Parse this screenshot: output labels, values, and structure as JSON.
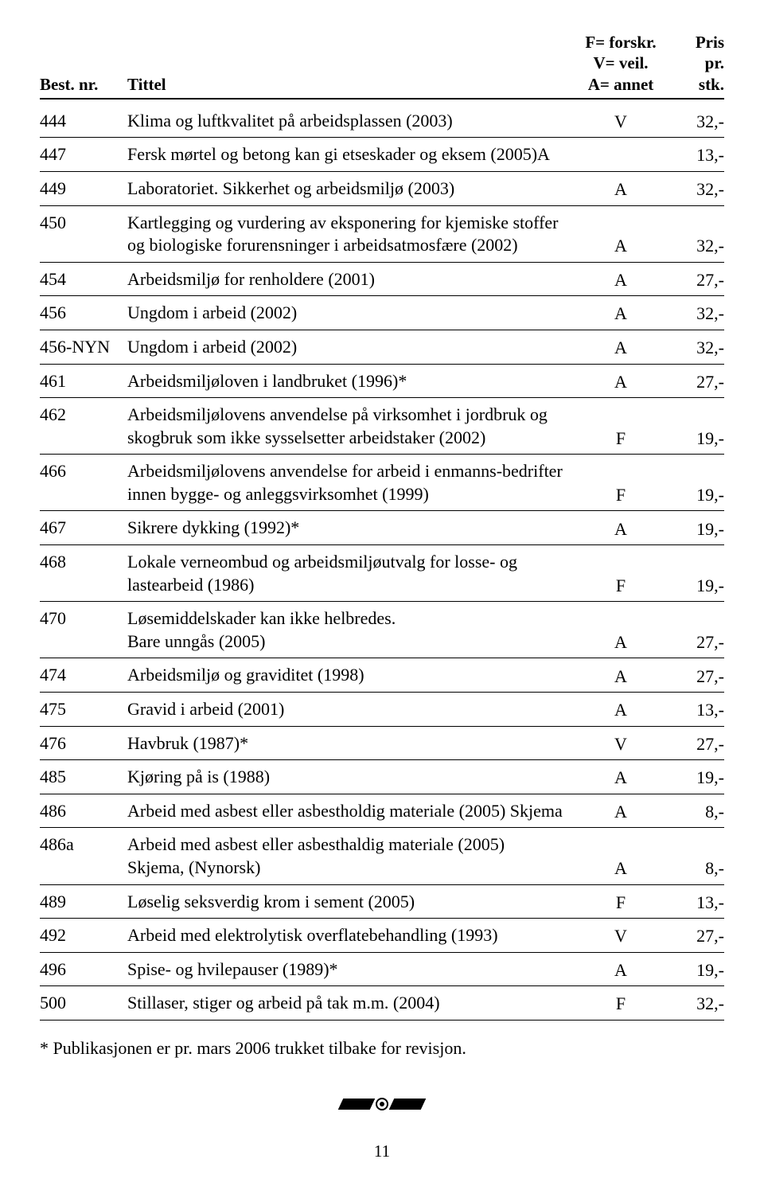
{
  "header": {
    "col_nr": "Best. nr.",
    "col_title": "Tittel",
    "col_type": "F= forskr.\nV= veil.\nA= annet",
    "col_price": "Pris\npr.\nstk."
  },
  "rows": [
    {
      "nr": "444",
      "title": "Klima og luftkvalitet på arbeidsplassen (2003)",
      "type": "V",
      "price": "32,-"
    },
    {
      "nr": "447",
      "title": "Fersk mørtel og betong kan gi etseskader og eksem (2005)A",
      "type": "",
      "price": "13,-"
    },
    {
      "nr": "449",
      "title": "Laboratoriet. Sikkerhet og arbeidsmiljø (2003)",
      "type": "A",
      "price": "32,-"
    },
    {
      "nr": "450",
      "title": "Kartlegging og vurdering av eksponering for kjemiske stoffer og biologiske forurensninger i arbeidsatmosfære (2002)",
      "type": "A",
      "price": "32,-"
    },
    {
      "nr": "454",
      "title": "Arbeidsmiljø for renholdere (2001)",
      "type": "A",
      "price": "27,-"
    },
    {
      "nr": "456",
      "title": "Ungdom i arbeid (2002)",
      "type": "A",
      "price": "32,-"
    },
    {
      "nr": "456-NYN",
      "title": "Ungdom i arbeid (2002)",
      "type": "A",
      "price": "32,-"
    },
    {
      "nr": "461",
      "title": "Arbeidsmiljøloven i landbruket (1996)*",
      "type": "A",
      "price": "27,-"
    },
    {
      "nr": "462",
      "title": "Arbeidsmiljølovens anvendelse på virksomhet i jordbruk og skogbruk som ikke sysselsetter arbeidstaker (2002)",
      "type": "F",
      "price": "19,-"
    },
    {
      "nr": "466",
      "title": "Arbeidsmiljølovens anvendelse for arbeid i enmanns-bedrifter innen bygge- og anleggsvirksomhet (1999)",
      "type": "F",
      "price": "19,-"
    },
    {
      "nr": "467",
      "title": "Sikrere dykking (1992)*",
      "type": "A",
      "price": "19,-"
    },
    {
      "nr": "468",
      "title": "Lokale verneombud og arbeidsmiljøutvalg for losse- og lastearbeid (1986)",
      "type": "F",
      "price": "19,-"
    },
    {
      "nr": "470",
      "title": "Løsemiddelskader kan ikke helbredes.\nBare unngås (2005)",
      "type": "A",
      "price": "27,-"
    },
    {
      "nr": "474",
      "title": "Arbeidsmiljø og graviditet (1998)",
      "type": "A",
      "price": "27,-"
    },
    {
      "nr": "475",
      "title": "Gravid i arbeid (2001)",
      "type": "A",
      "price": "13,-"
    },
    {
      "nr": "476",
      "title": "Havbruk (1987)*",
      "type": "V",
      "price": "27,-"
    },
    {
      "nr": "485",
      "title": "Kjøring på is (1988)",
      "type": "A",
      "price": "19,-"
    },
    {
      "nr": "486",
      "title": "Arbeid med asbest eller asbestholdig materiale (2005) Skjema",
      "type": "A",
      "price": "8,-"
    },
    {
      "nr": "486a",
      "title": "Arbeid med asbest eller asbesthaldig materiale (2005) Skjema, (Nynorsk)",
      "type": "A",
      "price": "8,-"
    },
    {
      "nr": "489",
      "title": "Løselig seksverdig krom i sement (2005)",
      "type": "F",
      "price": "13,-"
    },
    {
      "nr": "492",
      "title": "Arbeid med elektrolytisk overflatebehandling (1993)",
      "type": "V",
      "price": "27,-"
    },
    {
      "nr": "496",
      "title": "Spise- og hvilepauser (1989)*",
      "type": "A",
      "price": "19,-"
    },
    {
      "nr": "500",
      "title": "Stillaser, stiger og arbeid på tak m.m. (2004)",
      "type": "F",
      "price": "32,-"
    }
  ],
  "footnote": "* Publikasjonen er pr. mars 2006 trukket tilbake for revisjon.",
  "page_number": "11"
}
